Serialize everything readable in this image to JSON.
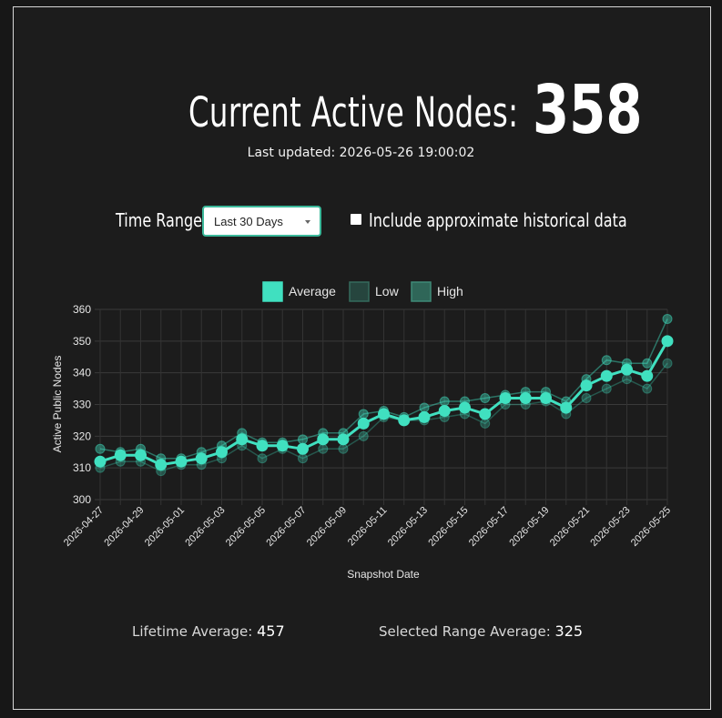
{
  "header": {
    "title": "Current Active Nodes:",
    "count": "358",
    "updated": "Last updated: 2026-05-26 19:00:02"
  },
  "controls": {
    "range_label": "Time Range:",
    "range_value": "Last 30 Days",
    "historical_label": "Include approximate historical data",
    "historical_checked": false
  },
  "stats": {
    "lifetime_label": "Lifetime Average:",
    "lifetime_value": "457",
    "range_label": "Selected Range Average:",
    "range_value": "325"
  },
  "colors": {
    "accent": "#40e0c0",
    "low": "#2f5e52",
    "high": "#3c8f7c"
  },
  "chart_data": {
    "type": "line",
    "xlabel": "Snapshot Date",
    "ylabel": "Active Public Nodes",
    "ylim": [
      300,
      360
    ],
    "yticks": [
      300,
      310,
      320,
      330,
      340,
      350,
      360
    ],
    "grid": true,
    "legend_position": "top",
    "x": [
      "2026-04-27",
      "2026-04-28",
      "2026-04-29",
      "2026-04-30",
      "2026-05-01",
      "2026-05-02",
      "2026-05-03",
      "2026-05-04",
      "2026-05-05",
      "2026-05-06",
      "2026-05-07",
      "2026-05-08",
      "2026-05-09",
      "2026-05-10",
      "2026-05-11",
      "2026-05-12",
      "2026-05-13",
      "2026-05-14",
      "2026-05-15",
      "2026-05-16",
      "2026-05-17",
      "2026-05-18",
      "2026-05-19",
      "2026-05-20",
      "2026-05-21",
      "2026-05-22",
      "2026-05-23",
      "2026-05-24",
      "2026-05-25"
    ],
    "xtick_labels": [
      "2026-04-27",
      "2026-04-29",
      "2026-05-01",
      "2026-05-03",
      "2026-05-05",
      "2026-05-07",
      "2026-05-09",
      "2026-05-11",
      "2026-05-13",
      "2026-05-15",
      "2026-05-17",
      "2026-05-19",
      "2026-05-21",
      "2026-05-23",
      "2026-05-25"
    ],
    "series": [
      {
        "name": "Average",
        "values": [
          312,
          314,
          314,
          311,
          312,
          313,
          315,
          319,
          317,
          317,
          316,
          319,
          319,
          324,
          327,
          325,
          326,
          328,
          329,
          327,
          332,
          332,
          332,
          329,
          336,
          339,
          341,
          339,
          350
        ]
      },
      {
        "name": "Low",
        "values": [
          310,
          312,
          312,
          309,
          311,
          311,
          313,
          317,
          313,
          316,
          313,
          316,
          316,
          320,
          326,
          325,
          325,
          326,
          327,
          324,
          330,
          330,
          331,
          327,
          332,
          335,
          338,
          335,
          343
        ]
      },
      {
        "name": "High",
        "values": [
          316,
          315,
          316,
          313,
          313,
          315,
          317,
          321,
          318,
          318,
          319,
          321,
          321,
          327,
          328,
          326,
          329,
          331,
          331,
          332,
          333,
          334,
          334,
          331,
          338,
          344,
          343,
          343,
          357
        ]
      }
    ]
  }
}
